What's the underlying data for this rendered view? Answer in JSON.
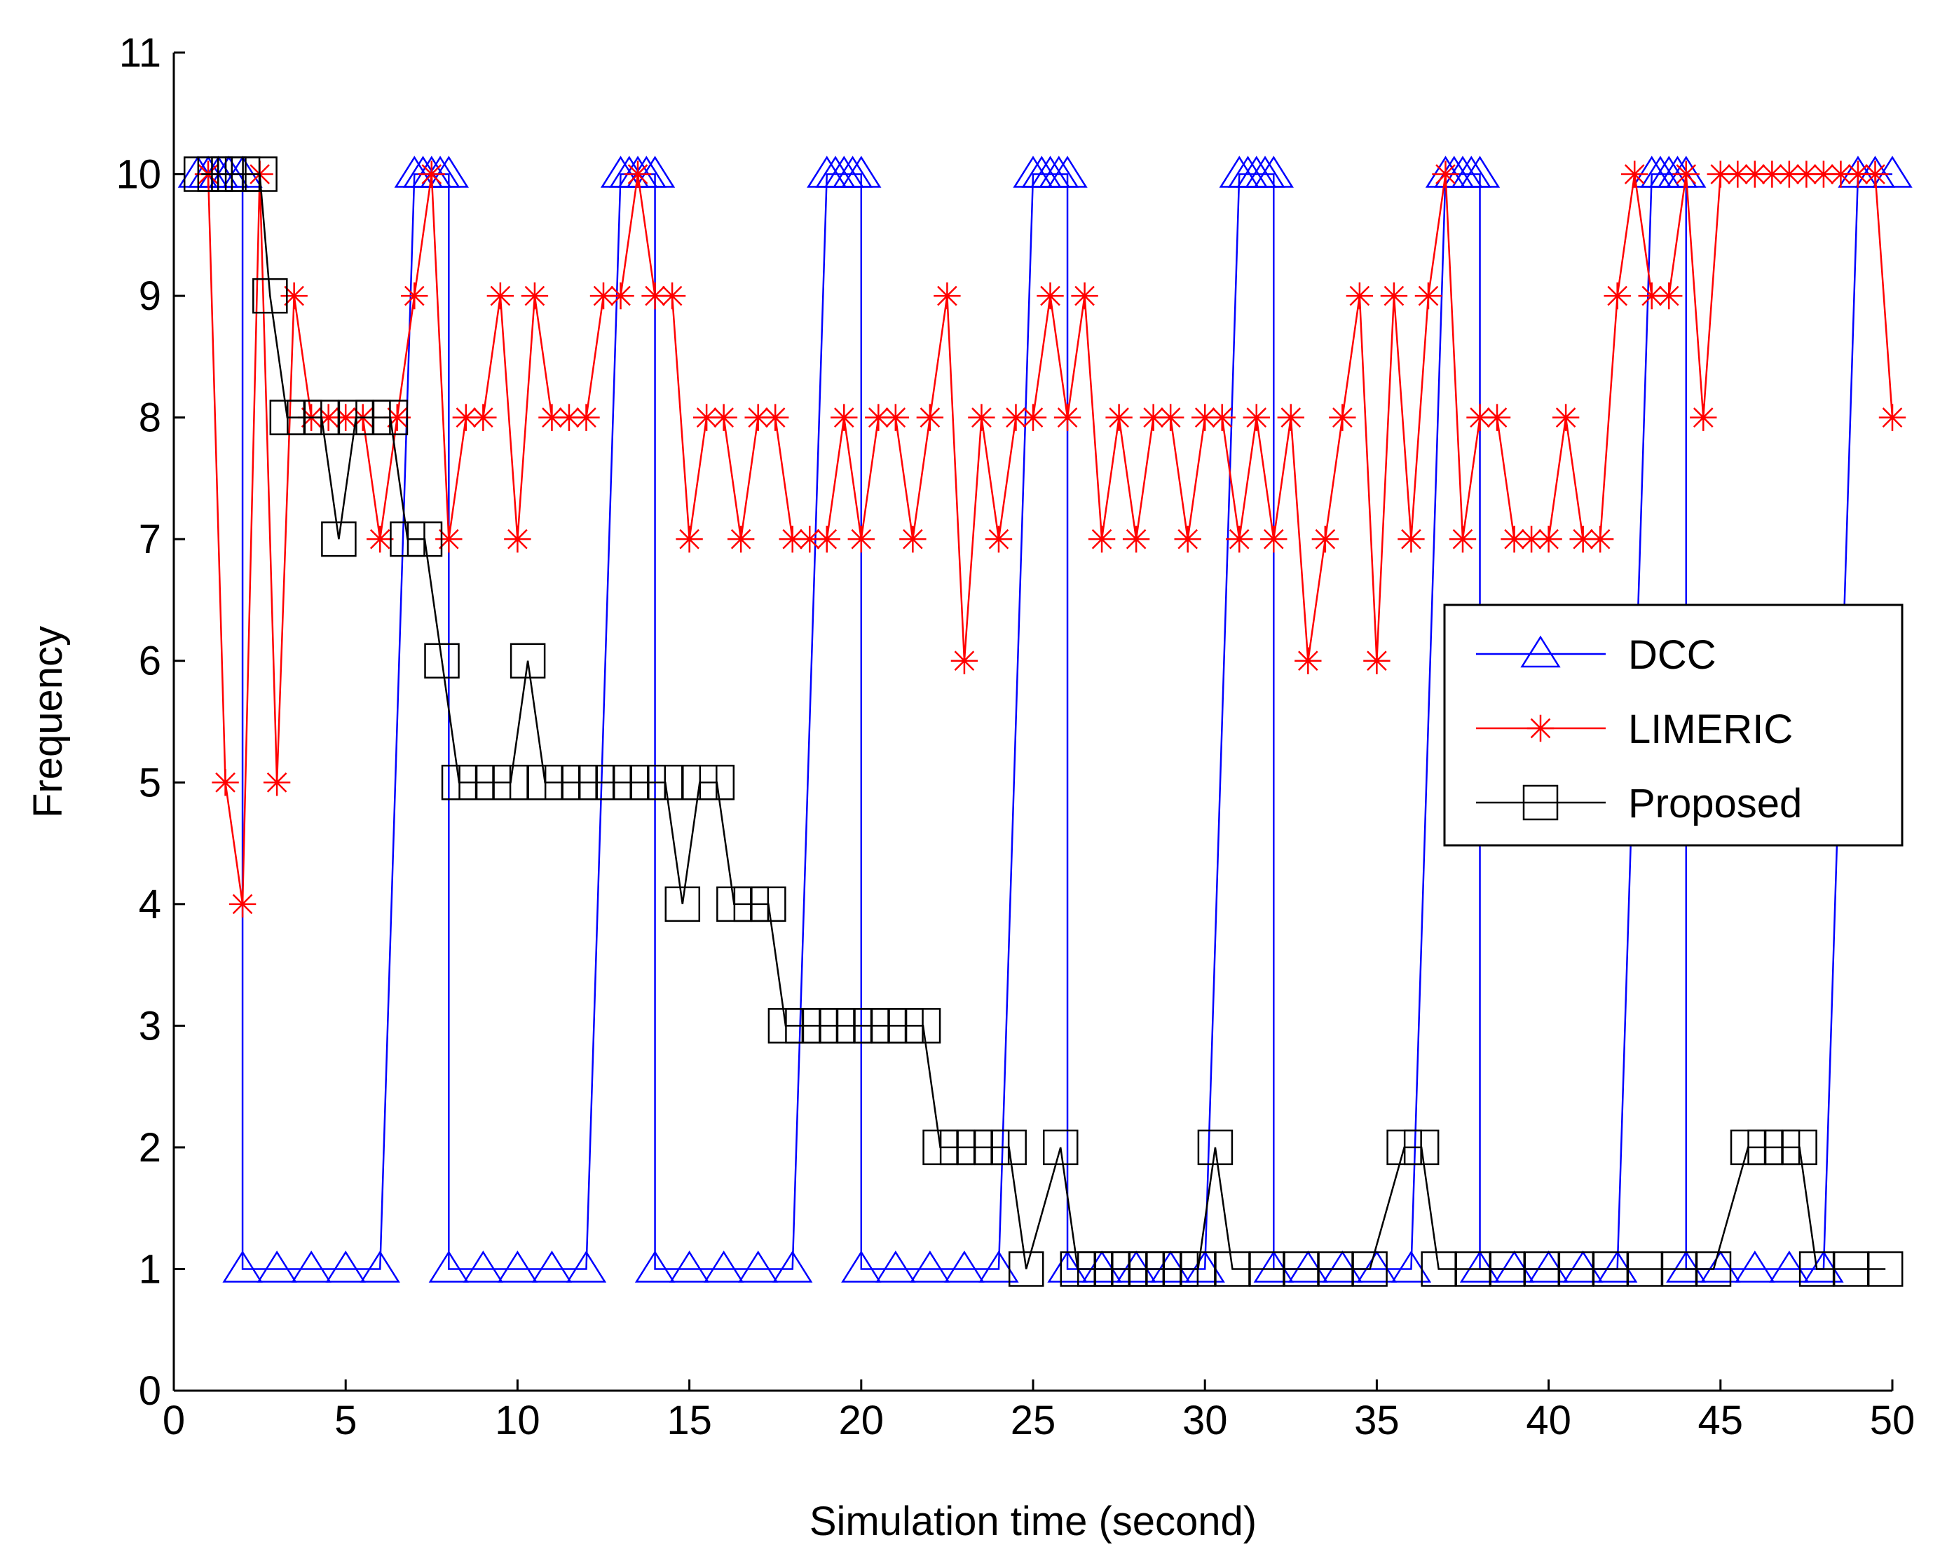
{
  "chart_data": {
    "type": "line",
    "xlabel": "Simulation time (second)",
    "ylabel": "Frequency",
    "xlim": [
      0,
      50
    ],
    "xticks": [
      0,
      5,
      10,
      15,
      20,
      25,
      30,
      35,
      40,
      45,
      50
    ],
    "ylim": [
      0,
      11
    ],
    "yticks": [
      0,
      1,
      2,
      3,
      4,
      5,
      6,
      7,
      8,
      9,
      10,
      11
    ],
    "legend": "right",
    "series": [
      {
        "name": "DCC",
        "color": "#0000ff",
        "marker": "triangle",
        "x": [
          0.7,
          1,
          1.3,
          1.6,
          2,
          2,
          3,
          4,
          5,
          6,
          7,
          7.25,
          7.5,
          7.75,
          8,
          8,
          9,
          10,
          11,
          12,
          13,
          13.25,
          13.5,
          13.75,
          14,
          14,
          15,
          16,
          17,
          18,
          19,
          19.25,
          19.5,
          19.75,
          20,
          20,
          21,
          22,
          23,
          24,
          25,
          25.25,
          25.5,
          25.75,
          26,
          26,
          27,
          28,
          29,
          30,
          31,
          31.25,
          31.5,
          31.75,
          32,
          32,
          33,
          34,
          35,
          36,
          37,
          37.25,
          37.5,
          37.75,
          38,
          38,
          39,
          40,
          41,
          42,
          43,
          43.25,
          43.5,
          43.75,
          44,
          44,
          45,
          46,
          47,
          48,
          49,
          49.5,
          50
        ],
        "values": [
          10,
          10,
          10,
          10,
          10,
          1,
          1,
          1,
          1,
          1,
          10,
          10,
          10,
          10,
          10,
          1,
          1,
          1,
          1,
          1,
          10,
          10,
          10,
          10,
          10,
          1,
          1,
          1,
          1,
          1,
          10,
          10,
          10,
          10,
          10,
          1,
          1,
          1,
          1,
          1,
          10,
          10,
          10,
          10,
          10,
          1,
          1,
          1,
          1,
          1,
          10,
          10,
          10,
          10,
          10,
          1,
          1,
          1,
          1,
          1,
          10,
          10,
          10,
          10,
          10,
          1,
          1,
          1,
          1,
          1,
          10,
          10,
          10,
          10,
          10,
          1,
          1,
          1,
          1,
          1,
          10,
          10,
          10
        ]
      },
      {
        "name": "LIMERIC",
        "color": "#ff0000",
        "marker": "asterisk",
        "x": [
          1,
          1.5,
          2,
          2.5,
          3,
          3.5,
          4,
          4.5,
          5,
          5.5,
          6,
          6.5,
          7,
          7.5,
          8,
          8.5,
          9,
          9.5,
          10,
          10.5,
          11,
          11.5,
          12,
          12.5,
          13,
          13.5,
          14,
          14.5,
          15,
          15.5,
          16,
          16.5,
          17,
          17.5,
          18,
          18.5,
          19,
          19.5,
          20,
          20.5,
          21,
          21.5,
          22,
          22.5,
          23,
          23.5,
          24,
          24.5,
          25,
          25.5,
          26,
          26.5,
          27,
          27.5,
          28,
          28.5,
          29,
          29.5,
          30,
          30.5,
          31,
          31.5,
          32,
          32.5,
          33,
          33.5,
          34,
          34.5,
          35,
          35.5,
          36,
          36.5,
          37,
          37.5,
          38,
          38.5,
          39,
          39.5,
          40,
          40.5,
          41,
          41.5,
          42,
          42.5,
          43,
          43.5,
          44,
          44.5,
          45,
          45.5,
          46,
          46.5,
          47,
          47.5,
          48,
          48.5,
          49,
          49.5,
          50
        ],
        "values": [
          10,
          5,
          4,
          10,
          5,
          9,
          8,
          8,
          8,
          8,
          7,
          8,
          9,
          10,
          7,
          8,
          8,
          9,
          7,
          9,
          8,
          8,
          8,
          9,
          9,
          10,
          9,
          9,
          7,
          8,
          8,
          7,
          8,
          8,
          7,
          7,
          7,
          8,
          7,
          8,
          8,
          7,
          8,
          9,
          6,
          8,
          7,
          8,
          8,
          9,
          8,
          9,
          7,
          8,
          7,
          8,
          8,
          7,
          8,
          8,
          7,
          8,
          7,
          8,
          6,
          7,
          8,
          9,
          6,
          9,
          7,
          9,
          10,
          7,
          8,
          8,
          7,
          7,
          7,
          8,
          7,
          7,
          9,
          10,
          9,
          9,
          10,
          8,
          10,
          10,
          10,
          10,
          10,
          10,
          10,
          10,
          10,
          10,
          8
        ]
      },
      {
        "name": "Proposed",
        "color": "#000000",
        "marker": "square",
        "x": [
          0.8,
          1.2,
          1.6,
          2,
          2.5,
          2.8,
          3.3,
          3.8,
          4.3,
          4.8,
          5.3,
          5.8,
          6.3,
          6.8,
          7.3,
          7.8,
          8.3,
          8.8,
          9.3,
          9.8,
          10.3,
          10.8,
          11.3,
          11.8,
          12.3,
          12.8,
          13.3,
          13.8,
          14.3,
          14.8,
          15.3,
          15.8,
          16.3,
          16.8,
          17.3,
          17.8,
          18.3,
          18.8,
          19.3,
          19.8,
          20.3,
          20.8,
          21.3,
          21.8,
          22.3,
          22.8,
          23.3,
          23.8,
          24.3,
          24.8,
          25.8,
          26.3,
          26.8,
          27.3,
          27.8,
          28.3,
          28.8,
          29.3,
          29.8,
          30.3,
          30.8,
          31.8,
          32.8,
          33.8,
          34.8,
          35.8,
          36.3,
          36.8,
          37.8,
          38.8,
          39.8,
          40.8,
          41.8,
          42.8,
          43.8,
          44.8,
          45.8,
          46.3,
          46.8,
          47.3,
          47.8,
          48.8,
          49.8
        ],
        "values": [
          10,
          10,
          10,
          10,
          10,
          9,
          8,
          8,
          8,
          7,
          8,
          8,
          8,
          7,
          7,
          6,
          5,
          5,
          5,
          5,
          6,
          5,
          5,
          5,
          5,
          5,
          5,
          5,
          5,
          4,
          5,
          5,
          4,
          4,
          4,
          3,
          3,
          3,
          3,
          3,
          3,
          3,
          3,
          3,
          2,
          2,
          2,
          2,
          2,
          1,
          2,
          1,
          1,
          1,
          1,
          1,
          1,
          1,
          1,
          2,
          1,
          1,
          1,
          1,
          1,
          2,
          2,
          1,
          1,
          1,
          1,
          1,
          1,
          1,
          1,
          1,
          2,
          2,
          2,
          2,
          1,
          1,
          1
        ]
      }
    ]
  }
}
